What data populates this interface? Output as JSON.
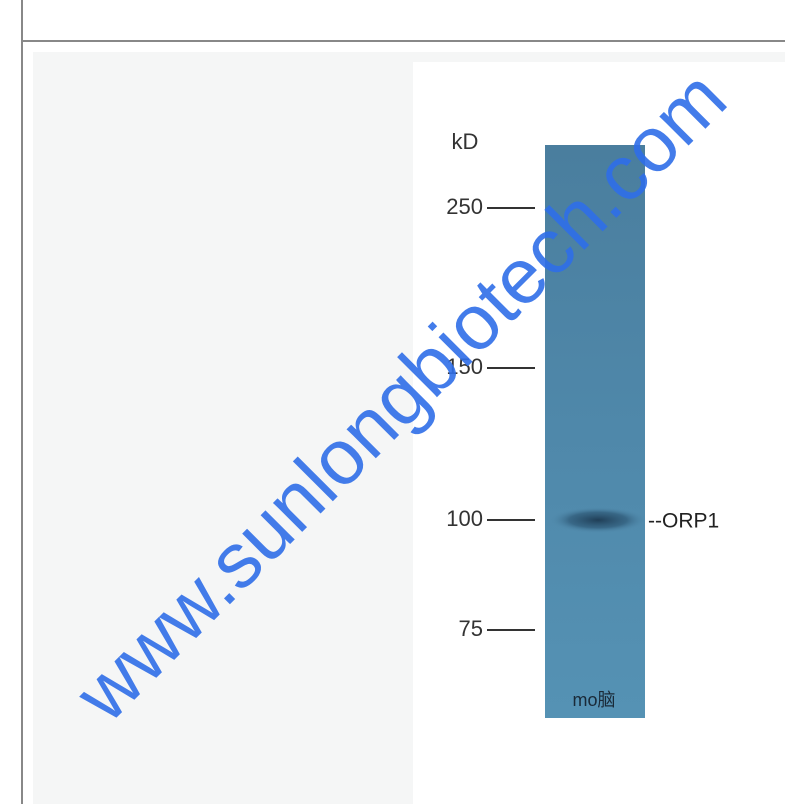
{
  "image": {
    "marker_unit": "kD",
    "markers": [
      250,
      150,
      100,
      75
    ],
    "band_label": "--ORP1",
    "lane_label": "mo脑"
  },
  "watermark": "www.sunlongbiotech.com"
}
